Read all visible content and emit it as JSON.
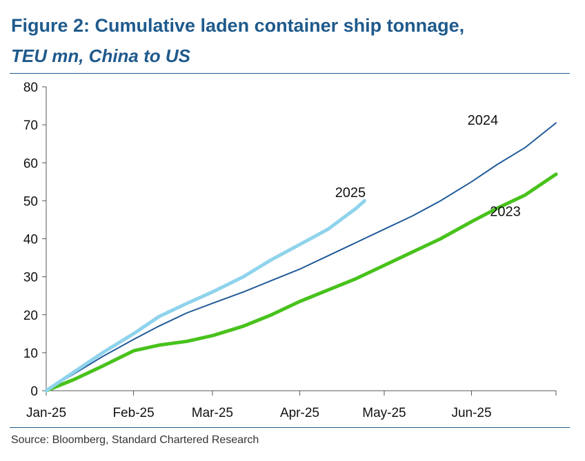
{
  "chart_data": {
    "type": "line",
    "title": "Figure 2: Cumulative laden container ship tonnage,",
    "subtitle": "TEU mn, China to US",
    "source": "Source: Bloomberg, Standard Chartered Research",
    "xlabel": "",
    "ylabel": "",
    "ylim": [
      0,
      80
    ],
    "yticks": [
      0,
      10,
      20,
      30,
      40,
      50,
      60,
      70,
      80
    ],
    "x_unit": "day of year",
    "xlim": [
      0,
      181
    ],
    "xticks": [
      {
        "label": "Jan-25",
        "day": 0
      },
      {
        "label": "Feb-25",
        "day": 31
      },
      {
        "label": "Mar-25",
        "day": 59
      },
      {
        "label": "Apr-25",
        "day": 90
      },
      {
        "label": "May-25",
        "day": 120
      },
      {
        "label": "Jun-25",
        "day": 151
      }
    ],
    "series": [
      {
        "name": "2023",
        "label": "2023",
        "color": "#48c21c",
        "stroke_weight": "bold",
        "label_anchor_day": 163,
        "label_anchor_value": 46,
        "x": [
          0,
          10,
          20,
          31,
          40,
          50,
          59,
          70,
          80,
          90,
          100,
          110,
          120,
          130,
          140,
          151,
          160,
          170,
          181
        ],
        "values": [
          0,
          3,
          6.5,
          10.5,
          12,
          13,
          14.5,
          17,
          20,
          23.5,
          26.5,
          29.5,
          33,
          36.5,
          40,
          44.5,
          48,
          51.5,
          57
        ]
      },
      {
        "name": "2024",
        "label": "2024",
        "color": "#1f5a99",
        "stroke_weight": "thin",
        "label_anchor_day": 155,
        "label_anchor_value": 70,
        "x": [
          0,
          10,
          20,
          31,
          40,
          50,
          59,
          70,
          80,
          90,
          100,
          110,
          120,
          130,
          140,
          151,
          160,
          170,
          181
        ],
        "values": [
          0,
          4.5,
          9,
          13.5,
          17,
          20.5,
          23,
          26,
          29,
          32,
          35.5,
          39,
          42.5,
          46,
          50,
          55,
          59.5,
          64,
          70.5
        ]
      },
      {
        "name": "2025",
        "label": "2025",
        "color": "#8fd3ec",
        "stroke_weight": "bold",
        "label_anchor_day": 108,
        "label_anchor_value": 51,
        "x": [
          0,
          10,
          20,
          31,
          40,
          50,
          59,
          70,
          80,
          90,
          100,
          110,
          113
        ],
        "values": [
          0,
          5,
          10,
          15,
          19.5,
          23,
          26,
          30,
          34.5,
          38.5,
          42.5,
          48,
          50
        ]
      }
    ]
  }
}
